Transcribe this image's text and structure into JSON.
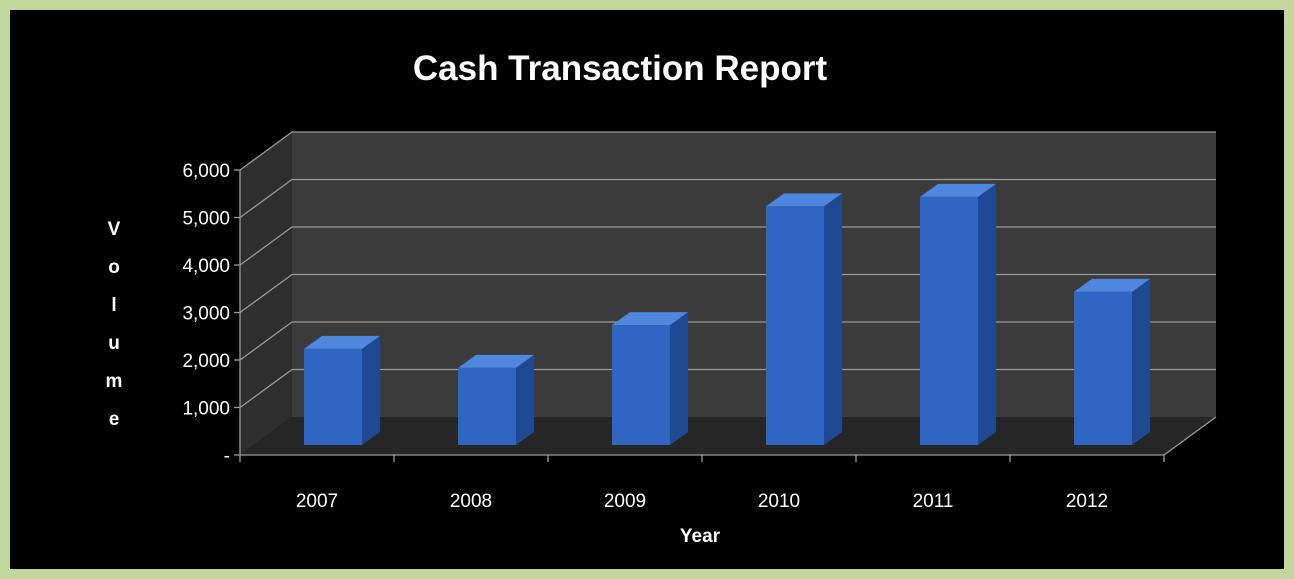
{
  "chart_data": {
    "type": "bar",
    "title": "Cash Transaction Report",
    "xlabel": "Year",
    "ylabel": "Volume",
    "categories": [
      "2007",
      "2008",
      "2009",
      "2010",
      "2011",
      "2012"
    ],
    "values": [
      2150,
      1750,
      2650,
      5150,
      5350,
      3350
    ],
    "ylim": [
      0,
      6000
    ],
    "y_ticks": [
      "-",
      "1,000",
      "2,000",
      "3,000",
      "4,000",
      "5,000",
      "6,000"
    ],
    "grid": true,
    "legend": "none",
    "three_d": true,
    "colors": {
      "bar_front": "#2f66c4",
      "bar_side": "#1f4a93",
      "bar_top": "#4f86de",
      "back_wall": "#3b3b3b",
      "side_wall": "#2e2e2e",
      "floor": "#262626",
      "grid": "#9a9a9a",
      "text": "#ffffff",
      "page_background": "#c3d69b",
      "chart_background": "#000000"
    }
  }
}
